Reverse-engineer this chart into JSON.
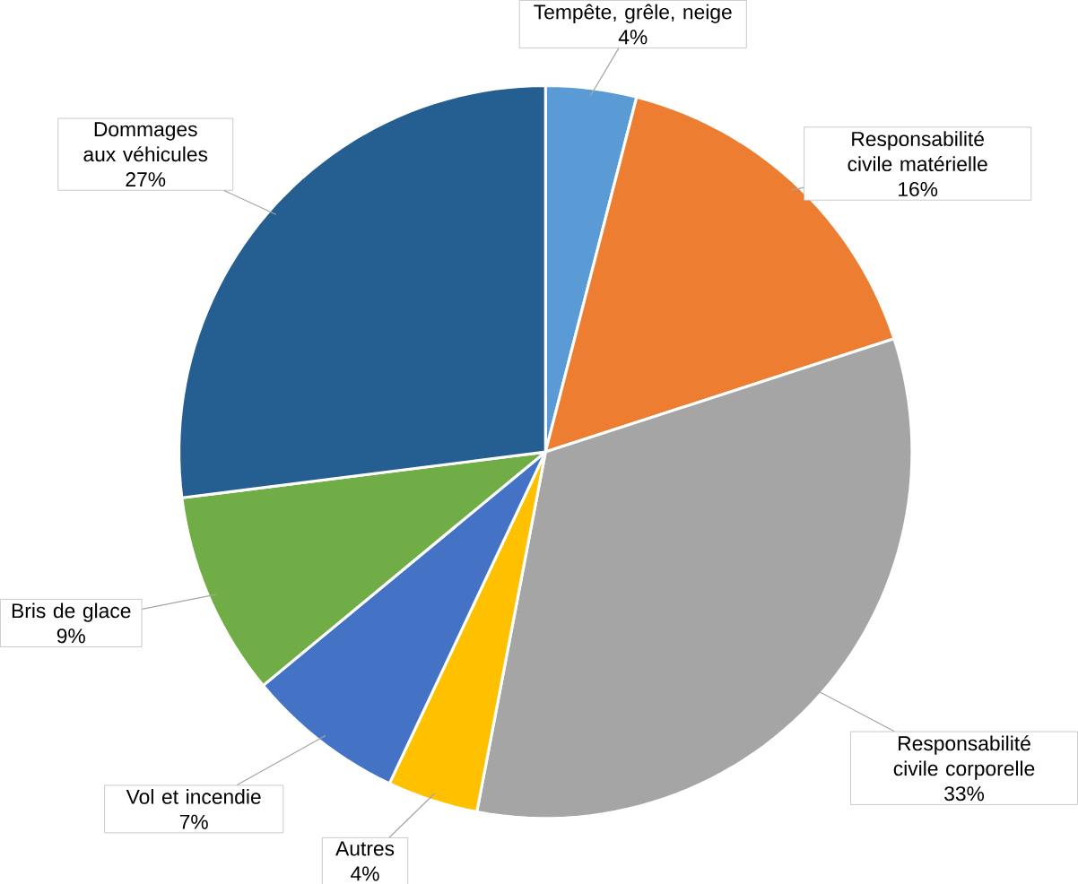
{
  "chart_data": {
    "type": "pie",
    "categories": [
      "Tempête, grêle, neige",
      "Responsabilité civile matérielle",
      "Responsabilité civile corporelle",
      "Autres",
      "Vol et incendie",
      "Bris de glace",
      "Dommages aux véhicules"
    ],
    "values": [
      4,
      16,
      33,
      4,
      7,
      9,
      27
    ],
    "value_labels": [
      "4%",
      "16%",
      "33%",
      "4%",
      "7%",
      "9%",
      "27%"
    ],
    "colors": [
      "#5b9bd5",
      "#ed7d31",
      "#a5a5a5",
      "#ffc000",
      "#4472c4",
      "#70ad47",
      "#255e91"
    ]
  }
}
